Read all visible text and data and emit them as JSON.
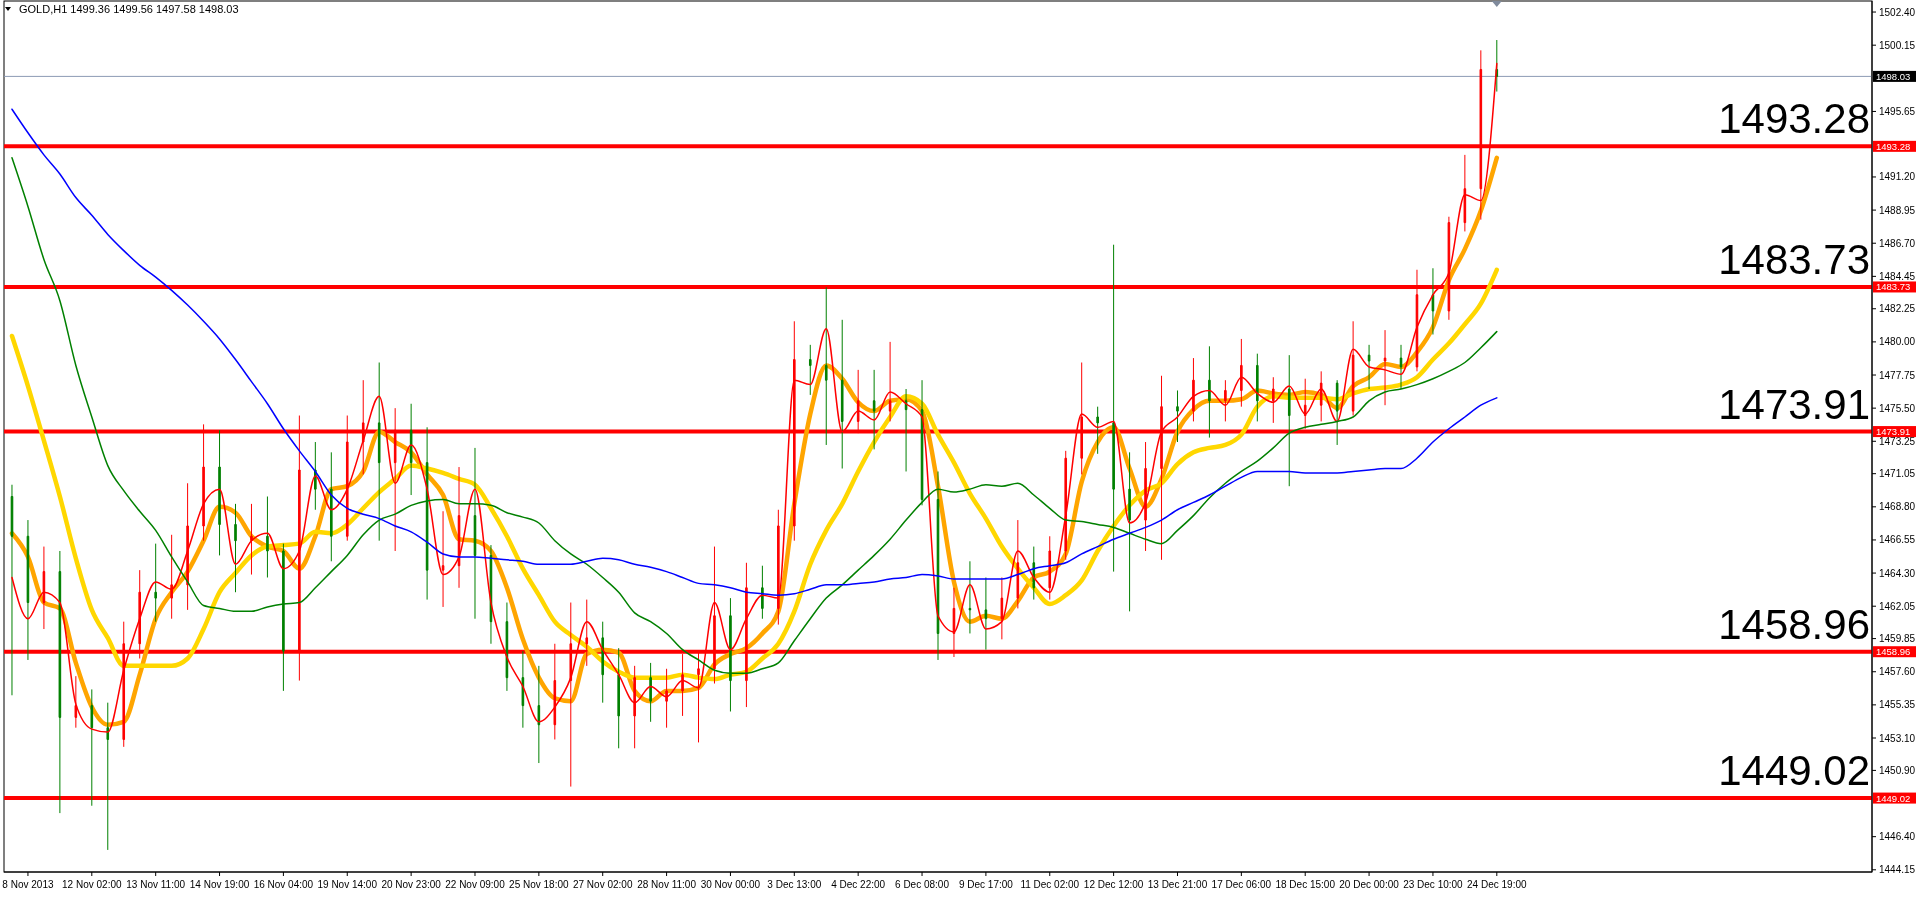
{
  "chart_data": {
    "type": "candlestick",
    "title": "GOLD,H1 1499.36 1499.56 1497.58 1498.03",
    "categories": [
      null,
      "8 Nov 2013",
      null,
      null,
      null,
      "12 Nov 02:00",
      null,
      null,
      null,
      "13 Nov 11:00",
      null,
      null,
      null,
      "14 Nov 19:00",
      null,
      null,
      null,
      "16 Nov 04:00",
      null,
      null,
      null,
      "19 Nov 14:00",
      null,
      null,
      null,
      "20 Nov 23:00",
      null,
      null,
      null,
      "22 Nov 09:00",
      null,
      null,
      null,
      "25 Nov 18:00",
      null,
      null,
      null,
      "27 Nov 02:00",
      null,
      null,
      null,
      "28 Nov 11:00",
      null,
      null,
      null,
      "30 Nov 00:00",
      null,
      null,
      null,
      "3 Dec 13:00",
      null,
      null,
      null,
      "4 Dec 22:00",
      null,
      null,
      null,
      "6 Dec 08:00",
      null,
      null,
      null,
      "9 Dec 17:00",
      null,
      null,
      null,
      "11 Dec 02:00",
      null,
      null,
      null,
      "12 Dec 12:00",
      null,
      null,
      null,
      "13 Dec 21:00",
      null,
      null,
      null,
      "17 Dec 06:00",
      null,
      null,
      null,
      "18 Dec 15:00",
      null,
      null,
      null,
      "20 Dec 00:00",
      null,
      null,
      null,
      "23 Dec 10:00",
      null,
      null,
      null,
      "24 Dec 19:00",
      null,
      null,
      null,
      null,
      null,
      null,
      null,
      null,
      null,
      null,
      null,
      null,
      null,
      null,
      null,
      null,
      null,
      null,
      null,
      null,
      null,
      null,
      null
    ],
    "ohlc": [
      [
        1469.5,
        1470.3,
        1456.0,
        1466.8
      ],
      [
        1466.8,
        1467.9,
        1458.4,
        1462.3
      ],
      [
        1462.3,
        1466.1,
        1460.5,
        1464.4
      ],
      [
        1464.4,
        1465.8,
        1448.0,
        1454.5
      ],
      [
        1454.5,
        1457.3,
        1453.8,
        1455.3
      ],
      [
        1455.3,
        1456.4,
        1448.5,
        1453.8
      ],
      [
        1453.8,
        1455.5,
        1445.5,
        1453.0
      ],
      [
        1453.0,
        1461.0,
        1452.5,
        1459.5
      ],
      [
        1459.5,
        1464.5,
        1458.5,
        1463.0
      ],
      [
        1463.0,
        1466.3,
        1461.0,
        1462.6
      ],
      [
        1462.6,
        1466.9,
        1461.2,
        1463.5
      ],
      [
        1463.5,
        1470.4,
        1461.8,
        1467.5
      ],
      [
        1467.5,
        1474.4,
        1466.5,
        1471.5
      ],
      [
        1471.5,
        1474.0,
        1465.5,
        1467.6
      ],
      [
        1467.6,
        1469.0,
        1463.0,
        1466.5
      ],
      [
        1466.5,
        1469.0,
        1464.2,
        1466.8
      ],
      [
        1466.8,
        1469.5,
        1464.0,
        1465.8
      ],
      [
        1465.8,
        1466.3,
        1456.3,
        1459.0
      ],
      [
        1459.0,
        1475.0,
        1457.0,
        1471.3
      ],
      [
        1471.3,
        1473.2,
        1468.6,
        1470.0
      ],
      [
        1470.0,
        1472.5,
        1465.1,
        1466.8
      ],
      [
        1466.8,
        1475.0,
        1466.5,
        1473.2
      ],
      [
        1473.2,
        1477.4,
        1471.0,
        1474.5
      ],
      [
        1474.5,
        1478.6,
        1466.5,
        1471.8
      ],
      [
        1471.8,
        1475.5,
        1465.8,
        1474.0
      ],
      [
        1474.0,
        1475.8,
        1469.6,
        1471.8
      ],
      [
        1471.8,
        1474.2,
        1462.5,
        1464.5
      ],
      [
        1464.5,
        1468.5,
        1462.0,
        1464.8
      ],
      [
        1464.8,
        1471.5,
        1463.3,
        1468.2
      ],
      [
        1468.2,
        1472.8,
        1461.2,
        1465.5
      ],
      [
        1465.5,
        1466.2,
        1459.5,
        1461.0
      ],
      [
        1461.0,
        1462.3,
        1456.3,
        1457.2
      ],
      [
        1457.2,
        1459.0,
        1453.8,
        1455.3
      ],
      [
        1455.3,
        1458.0,
        1451.4,
        1454.0
      ],
      [
        1454.0,
        1459.5,
        1453.0,
        1457.0
      ],
      [
        1457.0,
        1462.3,
        1449.8,
        1459.5
      ],
      [
        1459.5,
        1462.5,
        1458.0,
        1459.9
      ],
      [
        1459.9,
        1461.0,
        1455.5,
        1457.4
      ],
      [
        1457.4,
        1459.2,
        1452.4,
        1454.6
      ],
      [
        1454.6,
        1458.0,
        1452.4,
        1457.2
      ],
      [
        1457.2,
        1458.2,
        1454.2,
        1455.6
      ],
      [
        1455.6,
        1457.8,
        1453.8,
        1456.3
      ],
      [
        1456.3,
        1458.8,
        1454.6,
        1457.4
      ],
      [
        1457.4,
        1459.0,
        1452.8,
        1457.8
      ],
      [
        1457.8,
        1466.1,
        1456.8,
        1461.4
      ],
      [
        1461.4,
        1462.6,
        1454.9,
        1457.0
      ],
      [
        1457.0,
        1465.0,
        1455.2,
        1463.3
      ],
      [
        1463.3,
        1464.8,
        1461.2,
        1461.9
      ],
      [
        1461.9,
        1468.6,
        1460.8,
        1467.5
      ],
      [
        1467.5,
        1481.4,
        1466.5,
        1478.8
      ],
      [
        1478.8,
        1479.8,
        1476.4,
        1478.4
      ],
      [
        1478.4,
        1483.7,
        1473.0,
        1477.4
      ],
      [
        1477.4,
        1481.5,
        1471.4,
        1474.6
      ],
      [
        1474.6,
        1478.1,
        1473.8,
        1476.0
      ],
      [
        1476.0,
        1478.1,
        1472.7,
        1475.3
      ],
      [
        1475.3,
        1480.0,
        1474.6,
        1476.0
      ],
      [
        1476.0,
        1476.8,
        1471.2,
        1475.4
      ],
      [
        1475.4,
        1477.4,
        1468.9,
        1469.3
      ],
      [
        1469.3,
        1471.2,
        1458.4,
        1460.2
      ],
      [
        1460.2,
        1463.3,
        1458.6,
        1461.9
      ],
      [
        1461.9,
        1465.1,
        1460.2,
        1461.8
      ],
      [
        1461.8,
        1464.0,
        1459.1,
        1461.2
      ],
      [
        1461.2,
        1464.0,
        1459.8,
        1462.6
      ],
      [
        1462.6,
        1467.9,
        1461.9,
        1465.0
      ],
      [
        1465.0,
        1466.1,
        1462.5,
        1463.3
      ],
      [
        1463.3,
        1466.8,
        1462.5,
        1465.8
      ],
      [
        1465.8,
        1472.6,
        1465.2,
        1472.1
      ],
      [
        1472.1,
        1478.6,
        1471.0,
        1474.9
      ],
      [
        1474.9,
        1475.6,
        1472.4,
        1474.5
      ],
      [
        1474.5,
        1486.6,
        1464.4,
        1470.0
      ],
      [
        1470.0,
        1472.5,
        1461.7,
        1467.9
      ],
      [
        1467.9,
        1473.2,
        1465.8,
        1471.4
      ],
      [
        1471.4,
        1477.7,
        1465.2,
        1475.6
      ],
      [
        1475.6,
        1476.7,
        1473.2,
        1475.3
      ],
      [
        1475.3,
        1478.9,
        1474.6,
        1477.4
      ],
      [
        1477.4,
        1479.7,
        1473.5,
        1476.0
      ],
      [
        1476.0,
        1477.4,
        1474.6,
        1476.7
      ],
      [
        1476.7,
        1480.2,
        1475.6,
        1478.4
      ],
      [
        1478.4,
        1479.2,
        1474.6,
        1476.0
      ],
      [
        1476.0,
        1477.6,
        1474.5,
        1476.8
      ],
      [
        1476.8,
        1479.1,
        1470.2,
        1475.0
      ],
      [
        1475.0,
        1477.5,
        1474.1,
        1475.7
      ],
      [
        1475.7,
        1478.0,
        1474.6,
        1477.2
      ],
      [
        1477.2,
        1477.4,
        1473.0,
        1475.3
      ],
      [
        1475.3,
        1481.4,
        1475.0,
        1479.1
      ],
      [
        1479.1,
        1479.8,
        1476.8,
        1478.7
      ],
      [
        1478.7,
        1480.8,
        1475.7,
        1478.9
      ],
      [
        1478.9,
        1479.8,
        1476.8,
        1478.3
      ],
      [
        1478.3,
        1484.9,
        1478.0,
        1483.2
      ],
      [
        1483.2,
        1485.0,
        1480.5,
        1482.1
      ],
      [
        1482.1,
        1488.5,
        1481.5,
        1488.1
      ],
      [
        1488.1,
        1492.7,
        1487.5,
        1490.4
      ],
      [
        1490.4,
        1499.8,
        1488.3,
        1498.5
      ],
      [
        1498.5,
        1500.5,
        1497.0,
        1498.03
      ],
      null,
      null,
      null,
      null,
      null,
      null,
      null,
      null,
      null,
      null,
      null,
      null,
      null,
      null,
      null,
      null,
      null,
      null,
      null,
      null,
      null,
      null,
      null
    ],
    "colors": [
      "#008000",
      "#008000",
      "#ff0000",
      "#008000",
      "#ff0000",
      "#008000",
      "#008000",
      "#ff0000",
      "#ff0000",
      "#008000",
      "#ff0000",
      "#ff0000",
      "#ff0000",
      "#008000",
      "#008000",
      "#ff0000",
      "#008000",
      "#008000",
      "#ff0000",
      "#008000",
      "#008000",
      "#ff0000",
      "#ff0000",
      "#008000",
      "#ff0000",
      "#008000",
      "#008000",
      "#ff0000",
      "#ff0000",
      "#008000",
      "#008000",
      "#008000",
      "#008000",
      "#008000",
      "#ff0000",
      "#ff0000",
      "#ff0000",
      "#008000",
      "#008000",
      "#ff0000",
      "#008000",
      "#ff0000",
      "#ff0000",
      "#ff0000",
      "#ff0000",
      "#008000",
      "#ff0000",
      "#008000",
      "#ff0000",
      "#ff0000",
      "#008000",
      "#008000",
      "#008000",
      "#ff0000",
      "#008000",
      "#ff0000",
      "#008000",
      "#008000",
      "#008000",
      "#ff0000",
      "#008000",
      "#008000",
      "#ff0000",
      "#ff0000",
      "#008000",
      "#ff0000",
      "#ff0000",
      "#ff0000",
      "#008000",
      "#008000",
      "#008000",
      "#ff0000",
      "#ff0000",
      "#008000",
      "#ff0000",
      "#008000",
      "#ff0000",
      "#ff0000",
      "#008000",
      "#ff0000",
      "#008000",
      "#ff0000",
      "#ff0000",
      "#008000",
      "#ff0000",
      "#008000",
      "#ff0000",
      "#008000",
      "#ff0000",
      "#008000",
      "#ff0000",
      "#ff0000",
      "#ff0000",
      "#008000",
      null,
      null,
      null,
      null,
      null,
      null,
      null,
      null,
      null,
      null,
      null,
      null,
      null,
      null,
      null,
      null,
      null,
      null,
      null,
      null,
      null,
      null,
      null
    ],
    "series": [
      {
        "type": "line",
        "color": "#ff0000",
        "values": [
          1464.0,
          1461.2,
          1463.0,
          1462.3,
          1455.4,
          1453.7,
          1453.5,
          1457.7,
          1461.2,
          1463.7,
          1463.2,
          1465.8,
          1469.0,
          1470.0,
          1464.9,
          1466.5,
          1467.0,
          1464.6,
          1465.8,
          1470.9,
          1468.6,
          1470.0,
          1473.3,
          1476.3,
          1470.4,
          1473.0,
          1470.0,
          1464.2,
          1465.4,
          1470.0,
          1462.3,
          1458.6,
          1456.6,
          1454.2,
          1455.2,
          1457.2,
          1461.0,
          1459.1,
          1457.4,
          1455.5,
          1456.6,
          1455.9,
          1457.0,
          1456.5,
          1462.3,
          1459.1,
          1461.2,
          1462.8,
          1462.6,
          1477.4,
          1477.1,
          1480.9,
          1473.9,
          1475.3,
          1474.7,
          1476.6,
          1475.8,
          1474.9,
          1461.4,
          1460.3,
          1463.5,
          1460.5,
          1461.0,
          1465.8,
          1464.0,
          1463.0,
          1468.2,
          1475.1,
          1474.2,
          1474.6,
          1467.7,
          1469.1,
          1473.9,
          1474.9,
          1476.3,
          1476.7,
          1475.7,
          1477.6,
          1476.5,
          1475.9,
          1477.0,
          1475.1,
          1476.8,
          1474.6,
          1479.5,
          1478.3,
          1478.1,
          1477.8,
          1481.0,
          1483.2,
          1484.7,
          1490.0,
          1489.6,
          1498.9,
          null,
          null,
          null,
          null,
          null,
          null,
          null,
          null,
          null,
          null,
          null,
          null,
          null,
          null,
          null,
          null,
          null,
          null,
          null,
          null,
          null,
          null,
          null
        ]
      },
      {
        "type": "line",
        "color": "#ffa500",
        "values": [
          1467.0,
          1465.4,
          1462.3,
          1461.9,
          1458.2,
          1455.2,
          1454.0,
          1454.2,
          1457.4,
          1461.2,
          1463.0,
          1464.4,
          1466.5,
          1468.8,
          1468.4,
          1466.8,
          1466.1,
          1465.8,
          1464.6,
          1466.8,
          1470.0,
          1470.2,
          1471.2,
          1473.9,
          1473.2,
          1472.5,
          1471.0,
          1469.6,
          1466.6,
          1466.5,
          1465.8,
          1463.3,
          1459.8,
          1457.2,
          1455.8,
          1455.6,
          1458.8,
          1459.1,
          1458.9,
          1456.3,
          1455.6,
          1456.3,
          1456.3,
          1456.5,
          1458.1,
          1458.8,
          1459.2,
          1460.2,
          1461.7,
          1469.0,
          1475.1,
          1478.4,
          1477.5,
          1475.9,
          1475.3,
          1476.0,
          1476.1,
          1475.3,
          1470.2,
          1463.7,
          1461.0,
          1461.4,
          1461.2,
          1462.4,
          1464.0,
          1464.4,
          1465.6,
          1470.5,
          1473.2,
          1474.2,
          1471.4,
          1468.8,
          1470.7,
          1473.9,
          1475.4,
          1476.0,
          1476.0,
          1476.1,
          1476.7,
          1476.5,
          1476.4,
          1476.6,
          1476.4,
          1475.5,
          1477.0,
          1477.6,
          1478.5,
          1478.3,
          1479.3,
          1481.0,
          1484.2,
          1486.3,
          1488.9,
          1492.5,
          null,
          null,
          null,
          null,
          null,
          null,
          null,
          null,
          null,
          null,
          null,
          null,
          null,
          null,
          null,
          null,
          null,
          null,
          null,
          null,
          null,
          null,
          null
        ]
      },
      {
        "type": "line",
        "color": "#ffd700",
        "values": [
          1480.4,
          1477.0,
          1473.3,
          1469.5,
          1465.3,
          1461.8,
          1459.9,
          1458.0,
          1458.0,
          1458.0,
          1458.0,
          1458.5,
          1460.5,
          1463.0,
          1464.3,
          1465.5,
          1466.1,
          1466.2,
          1466.3,
          1467.1,
          1467.0,
          1467.6,
          1468.7,
          1469.8,
          1470.7,
          1471.6,
          1471.4,
          1471.1,
          1470.7,
          1470.3,
          1468.7,
          1466.8,
          1464.6,
          1462.8,
          1461.0,
          1460.1,
          1459.3,
          1458.3,
          1457.6,
          1457.2,
          1457.2,
          1457.2,
          1457.4,
          1457.2,
          1457.1,
          1457.4,
          1457.6,
          1458.5,
          1459.5,
          1461.7,
          1464.9,
          1467.2,
          1469.0,
          1471.2,
          1473.2,
          1474.9,
          1476.3,
          1475.8,
          1473.7,
          1471.8,
          1469.7,
          1468.0,
          1466.1,
          1464.6,
          1463.3,
          1462.2,
          1462.8,
          1463.8,
          1465.8,
          1467.5,
          1468.9,
          1469.9,
          1470.4,
          1471.7,
          1472.5,
          1472.8,
          1473.0,
          1473.7,
          1475.6,
          1476.3,
          1476.2,
          1476.2,
          1476.2,
          1476.1,
          1476.5,
          1476.8,
          1476.9,
          1477.1,
          1477.6,
          1478.8,
          1479.9,
          1481.2,
          1482.6,
          1484.9,
          null,
          null,
          null,
          null,
          null,
          null,
          null,
          null,
          null,
          null,
          null,
          null,
          null,
          null,
          null,
          null,
          null,
          null,
          null,
          null,
          null,
          null,
          null
        ]
      },
      {
        "type": "line",
        "color": "#008000",
        "values": [
          1492.5,
          1489.2,
          1485.6,
          1482.8,
          1478.4,
          1474.9,
          1471.6,
          1469.9,
          1468.5,
          1467.2,
          1465.4,
          1463.7,
          1462.1,
          1461.9,
          1461.7,
          1461.7,
          1462.0,
          1462.2,
          1462.3,
          1463.3,
          1464.4,
          1465.5,
          1466.9,
          1467.9,
          1468.3,
          1468.9,
          1469.2,
          1469.3,
          1469.0,
          1469.0,
          1468.9,
          1468.4,
          1468.1,
          1467.7,
          1466.5,
          1465.6,
          1464.9,
          1464.0,
          1463.0,
          1461.6,
          1461.0,
          1460.2,
          1459.1,
          1458.4,
          1457.7,
          1457.5,
          1457.5,
          1457.8,
          1458.2,
          1459.7,
          1461.2,
          1462.6,
          1463.5,
          1464.5,
          1465.5,
          1466.6,
          1467.9,
          1469.1,
          1470.0,
          1469.8,
          1470.0,
          1470.3,
          1470.2,
          1470.4,
          1469.6,
          1468.7,
          1467.9,
          1467.8,
          1467.6,
          1467.4,
          1467.0,
          1466.6,
          1466.3,
          1467.2,
          1468.2,
          1469.4,
          1470.4,
          1471.2,
          1471.9,
          1472.8,
          1473.8,
          1474.2,
          1474.4,
          1474.6,
          1474.9,
          1476.0,
          1476.6,
          1476.8,
          1477.1,
          1477.5,
          1478.0,
          1478.6,
          1479.6,
          1480.7,
          null,
          null,
          null,
          null,
          null,
          null,
          null,
          null,
          null,
          null,
          null,
          null,
          null,
          null,
          null,
          null,
          null,
          null,
          null,
          null,
          null,
          null,
          null
        ]
      },
      {
        "type": "line",
        "color": "#0000ff",
        "values": [
          1495.8,
          1494.2,
          1492.7,
          1491.4,
          1489.8,
          1488.6,
          1487.3,
          1486.2,
          1485.2,
          1484.4,
          1483.5,
          1482.5,
          1481.4,
          1480.2,
          1478.8,
          1477.3,
          1475.8,
          1474.1,
          1472.6,
          1471.2,
          1469.6,
          1468.7,
          1468.3,
          1468.0,
          1467.5,
          1467.1,
          1466.4,
          1465.6,
          1465.4,
          1465.4,
          1465.3,
          1465.2,
          1465.1,
          1464.9,
          1464.9,
          1464.9,
          1465.1,
          1465.3,
          1465.2,
          1464.9,
          1464.7,
          1464.4,
          1464.0,
          1463.6,
          1463.5,
          1463.3,
          1463.0,
          1462.9,
          1462.8,
          1462.9,
          1463.2,
          1463.5,
          1463.5,
          1463.6,
          1463.7,
          1463.9,
          1464.0,
          1464.2,
          1464.1,
          1463.9,
          1463.9,
          1463.9,
          1463.9,
          1464.2,
          1464.6,
          1464.8,
          1465.0,
          1465.6,
          1466.1,
          1466.6,
          1467.0,
          1467.4,
          1467.9,
          1468.6,
          1469.1,
          1469.6,
          1470.2,
          1470.8,
          1471.2,
          1471.2,
          1471.2,
          1471.1,
          1471.1,
          1471.1,
          1471.2,
          1471.3,
          1471.4,
          1471.4,
          1472.1,
          1473.2,
          1474.1,
          1474.9,
          1475.7,
          1476.2,
          null,
          null,
          null,
          null,
          null,
          null,
          null,
          null,
          null,
          null,
          null,
          null,
          null,
          null,
          null,
          null,
          null,
          null,
          null,
          null,
          null,
          null,
          null
        ]
      }
    ],
    "ylim": [
      1444.0,
      1503.15
    ],
    "yticks": [
      {
        "value": 1502.4,
        "label": "1502.40"
      },
      1500.15,
      1495.65,
      {
        "value": 1491.2,
        "label": "1491.20"
      },
      1488.95,
      {
        "value": 1486.7,
        "label": "1486.70"
      },
      1484.45,
      1482.25,
      {
        "value": 1480,
        "label": "1480.00"
      },
      1477.75,
      {
        "value": 1475.5,
        "label": "1475.50"
      },
      1473.25,
      1471.05,
      {
        "value": 1468.8,
        "label": "1468.80"
      },
      1466.55,
      {
        "value": 1464.3,
        "label": "1464.30"
      },
      1462.05,
      1459.85,
      {
        "value": 1457.6,
        "label": "1457.60"
      },
      1455.35,
      {
        "value": 1453.1,
        "label": "1453.10"
      },
      {
        "value": 1450.9,
        "label": "1450.90"
      },
      {
        "value": 1446.4,
        "label": "1446.40"
      },
      1444.15
    ],
    "ref_lines": [
      {
        "axis": "y",
        "value": 1498.03,
        "color": "#8c9bb5"
      },
      {
        "axis": "y",
        "value": 1493.28,
        "label": "1493.28",
        "color": "#ff0000"
      },
      {
        "axis": "y",
        "value": 1483.73,
        "label": "1483.73",
        "color": "#ff0000"
      },
      {
        "axis": "y",
        "value": 1473.91,
        "label": "1473.91",
        "color": "#ff0000"
      },
      {
        "axis": "y",
        "value": 1458.96,
        "label": "1458.96",
        "color": "#ff0000"
      },
      {
        "axis": "y",
        "value": 1449.02,
        "label": "1449.02",
        "color": "#ff0000"
      }
    ],
    "annotations": [
      "1498.03",
      "1493.28",
      "1483.73",
      "1473.91",
      "1458.96",
      "1449.02"
    ]
  }
}
